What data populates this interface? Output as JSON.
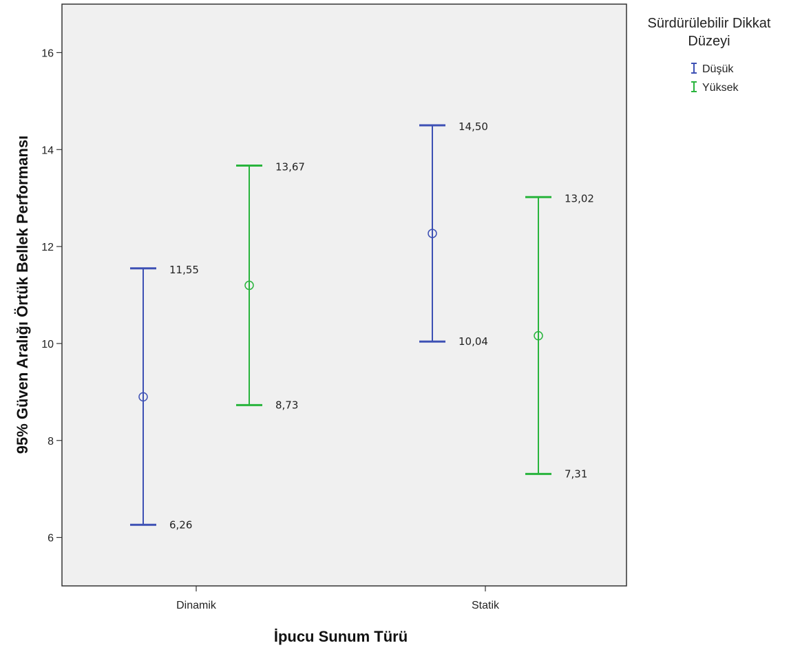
{
  "chart_data": {
    "type": "errorbar",
    "categories": [
      "Dinamik",
      "Statik"
    ],
    "xlabel": "İpucu Sunum Türü",
    "ylabel": "95% Güven Aralığı Örtük Bellek Performansı",
    "ylim": [
      5.0,
      17.0
    ],
    "yticks": [
      6,
      8,
      10,
      12,
      14,
      16
    ],
    "grid": false,
    "legend": {
      "title_lines": [
        "Sürdürülebilir Dikkat",
        "Düzeyi"
      ],
      "placement": "right"
    },
    "series": [
      {
        "name": "Düşük",
        "color": "#3d50b4",
        "points": [
          {
            "category": "Dinamik",
            "mean": 8.9,
            "lower": 6.26,
            "upper": 11.55,
            "lower_label": "6,26",
            "upper_label": "11,55"
          },
          {
            "category": "Statik",
            "mean": 12.27,
            "lower": 10.04,
            "upper": 14.5,
            "lower_label": "10,04",
            "upper_label": "14,50"
          }
        ]
      },
      {
        "name": "Yüksek",
        "color": "#28b43c",
        "points": [
          {
            "category": "Dinamik",
            "mean": 11.2,
            "lower": 8.73,
            "upper": 13.67,
            "lower_label": "8,73",
            "upper_label": "13,67"
          },
          {
            "category": "Statik",
            "mean": 10.16,
            "lower": 7.31,
            "upper": 13.02,
            "lower_label": "7,31",
            "upper_label": "13,02"
          }
        ]
      }
    ]
  }
}
